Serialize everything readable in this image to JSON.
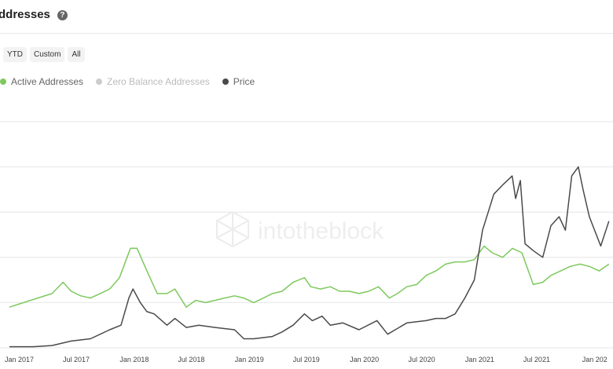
{
  "header": {
    "title": "ddresses",
    "help_icon": "help-icon"
  },
  "range_buttons": [
    "YTD",
    "Custom",
    "All"
  ],
  "watermark": "intotheblock",
  "colors": {
    "active": "#7dc95e",
    "zero": "#cccccc",
    "price": "#4a4a4a",
    "grid": "#e6e6e6"
  },
  "chart_data": {
    "type": "line",
    "title": "",
    "legend": {
      "placement": "top-left"
    },
    "grid": true,
    "x_ticks": [
      "Jan 2017",
      "Jul 2017",
      "Jan 2018",
      "Jul 2018",
      "Jan 2019",
      "Jul 2019",
      "Jan 2020",
      "Jul 2020",
      "Jan 2021",
      "Jul 2021",
      "Jan 202"
    ],
    "series": [
      {
        "name": "Active Addresses",
        "axis": "relative",
        "points": [
          [
            "2016-12-01",
            0.18
          ],
          [
            "2017-01-15",
            0.2
          ],
          [
            "2017-03-01",
            0.22
          ],
          [
            "2017-04-15",
            0.24
          ],
          [
            "2017-05-20",
            0.29
          ],
          [
            "2017-06-15",
            0.25
          ],
          [
            "2017-07-15",
            0.23
          ],
          [
            "2017-08-15",
            0.22
          ],
          [
            "2017-09-15",
            0.24
          ],
          [
            "2017-10-15",
            0.26
          ],
          [
            "2017-11-15",
            0.31
          ],
          [
            "2017-12-20",
            0.44
          ],
          [
            "2018-01-10",
            0.44
          ],
          [
            "2018-02-10",
            0.34
          ],
          [
            "2018-03-15",
            0.24
          ],
          [
            "2018-04-15",
            0.24
          ],
          [
            "2018-05-10",
            0.26
          ],
          [
            "2018-06-15",
            0.18
          ],
          [
            "2018-07-15",
            0.21
          ],
          [
            "2018-08-15",
            0.2
          ],
          [
            "2018-09-15",
            0.21
          ],
          [
            "2018-10-15",
            0.22
          ],
          [
            "2018-11-15",
            0.23
          ],
          [
            "2018-12-15",
            0.22
          ],
          [
            "2019-01-15",
            0.2
          ],
          [
            "2019-02-15",
            0.22
          ],
          [
            "2019-03-15",
            0.24
          ],
          [
            "2019-04-15",
            0.25
          ],
          [
            "2019-05-20",
            0.29
          ],
          [
            "2019-06-25",
            0.31
          ],
          [
            "2019-07-15",
            0.27
          ],
          [
            "2019-08-15",
            0.26
          ],
          [
            "2019-09-15",
            0.27
          ],
          [
            "2019-10-15",
            0.25
          ],
          [
            "2019-11-15",
            0.25
          ],
          [
            "2019-12-15",
            0.24
          ],
          [
            "2020-01-15",
            0.25
          ],
          [
            "2020-02-15",
            0.27
          ],
          [
            "2020-03-20",
            0.22
          ],
          [
            "2020-04-15",
            0.24
          ],
          [
            "2020-05-15",
            0.27
          ],
          [
            "2020-06-15",
            0.28
          ],
          [
            "2020-07-15",
            0.32
          ],
          [
            "2020-08-15",
            0.34
          ],
          [
            "2020-09-15",
            0.37
          ],
          [
            "2020-10-15",
            0.38
          ],
          [
            "2020-11-15",
            0.38
          ],
          [
            "2020-12-15",
            0.39
          ],
          [
            "2021-01-15",
            0.45
          ],
          [
            "2021-02-10",
            0.42
          ],
          [
            "2021-03-15",
            0.4
          ],
          [
            "2021-04-15",
            0.44
          ],
          [
            "2021-05-15",
            0.42
          ],
          [
            "2021-06-20",
            0.28
          ],
          [
            "2021-07-20",
            0.29
          ],
          [
            "2021-08-15",
            0.32
          ],
          [
            "2021-09-15",
            0.34
          ],
          [
            "2021-10-15",
            0.36
          ],
          [
            "2021-11-15",
            0.37
          ],
          [
            "2021-12-15",
            0.36
          ],
          [
            "2022-01-15",
            0.34
          ],
          [
            "2022-02-15",
            0.37
          ]
        ]
      },
      {
        "name": "Zero Balance Addresses",
        "axis": "relative",
        "hidden": true,
        "points": []
      },
      {
        "name": "Price",
        "axis": "relative",
        "points": [
          [
            "2016-12-01",
            0.005
          ],
          [
            "2017-02-15",
            0.005
          ],
          [
            "2017-04-15",
            0.01
          ],
          [
            "2017-06-15",
            0.03
          ],
          [
            "2017-08-15",
            0.04
          ],
          [
            "2017-10-15",
            0.08
          ],
          [
            "2017-11-20",
            0.1
          ],
          [
            "2017-12-15",
            0.22
          ],
          [
            "2017-12-28",
            0.26
          ],
          [
            "2018-01-20",
            0.2
          ],
          [
            "2018-02-10",
            0.16
          ],
          [
            "2018-03-05",
            0.15
          ],
          [
            "2018-04-15",
            0.1
          ],
          [
            "2018-05-10",
            0.13
          ],
          [
            "2018-06-15",
            0.09
          ],
          [
            "2018-07-25",
            0.1
          ],
          [
            "2018-09-15",
            0.09
          ],
          [
            "2018-11-15",
            0.08
          ],
          [
            "2018-12-15",
            0.04
          ],
          [
            "2019-01-15",
            0.04
          ],
          [
            "2019-03-15",
            0.05
          ],
          [
            "2019-04-15",
            0.07
          ],
          [
            "2019-05-20",
            0.1
          ],
          [
            "2019-06-25",
            0.15
          ],
          [
            "2019-07-20",
            0.12
          ],
          [
            "2019-08-20",
            0.14
          ],
          [
            "2019-09-15",
            0.1
          ],
          [
            "2019-10-25",
            0.11
          ],
          [
            "2019-12-15",
            0.08
          ],
          [
            "2020-02-10",
            0.12
          ],
          [
            "2020-03-15",
            0.06
          ],
          [
            "2020-05-15",
            0.11
          ],
          [
            "2020-07-15",
            0.12
          ],
          [
            "2020-08-15",
            0.13
          ],
          [
            "2020-09-15",
            0.13
          ],
          [
            "2020-10-15",
            0.15
          ],
          [
            "2020-11-15",
            0.22
          ],
          [
            "2020-12-15",
            0.3
          ],
          [
            "2021-01-10",
            0.52
          ],
          [
            "2021-02-15",
            0.68
          ],
          [
            "2021-03-15",
            0.72
          ],
          [
            "2021-04-14",
            0.76
          ],
          [
            "2021-04-25",
            0.66
          ],
          [
            "2021-05-10",
            0.74
          ],
          [
            "2021-05-25",
            0.46
          ],
          [
            "2021-06-20",
            0.43
          ],
          [
            "2021-07-20",
            0.4
          ],
          [
            "2021-08-15",
            0.54
          ],
          [
            "2021-09-10",
            0.58
          ],
          [
            "2021-09-30",
            0.52
          ],
          [
            "2021-10-20",
            0.76
          ],
          [
            "2021-11-10",
            0.8
          ],
          [
            "2021-11-25",
            0.7
          ],
          [
            "2021-12-15",
            0.58
          ],
          [
            "2022-01-20",
            0.45
          ],
          [
            "2022-02-15",
            0.56
          ]
        ]
      }
    ]
  }
}
